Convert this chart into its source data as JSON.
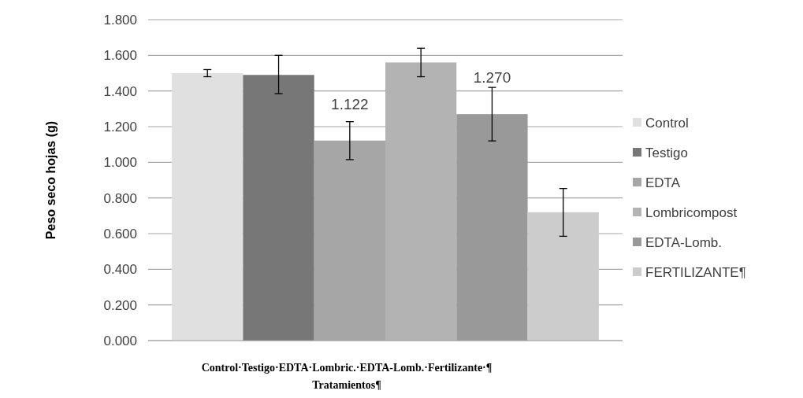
{
  "chart_data": {
    "type": "bar",
    "ylabel": "Peso seco hojas (g)",
    "xlabel": "Tratamientos¶",
    "annotations": [
      "Control·Testigo·EDTA·Lombric.·EDTA-Lomb.·Fertilizante·¶"
    ],
    "categories": [
      null
    ],
    "series": [
      {
        "name": "Control",
        "color": "#e0e0e0",
        "values": [
          1.5
        ],
        "errors": [
          [
            1.48,
            1.52
          ]
        ]
      },
      {
        "name": "Testigo",
        "color": "#777777",
        "values": [
          1.49
        ],
        "errors": [
          [
            1.385,
            1.6
          ]
        ]
      },
      {
        "name": "EDTA",
        "color": "#a6a6a6",
        "values": [
          1.122
        ],
        "errors": [
          [
            1.015,
            1.228
          ]
        ],
        "value_labels": [
          "1.122"
        ]
      },
      {
        "name": "Lombricompost",
        "color": "#b3b3b3",
        "values": [
          1.56
        ],
        "errors": [
          [
            1.48,
            1.64
          ]
        ]
      },
      {
        "name": "EDTA-Lomb.",
        "color": "#999999",
        "values": [
          1.27
        ],
        "errors": [
          [
            1.12,
            1.42
          ]
        ],
        "value_labels": [
          "1.270"
        ]
      },
      {
        "name": "FERTILIZANTE¶",
        "color": "#cccccc",
        "values": [
          0.72
        ],
        "errors": [
          [
            0.585,
            0.853
          ]
        ]
      }
    ],
    "ylim": [
      0,
      1.8
    ],
    "yticks": [
      {
        "value": 0,
        "label": "0.000"
      },
      {
        "value": 0.2,
        "label": "0.200"
      },
      {
        "value": 0.4,
        "label": "0.400"
      },
      {
        "value": 0.6,
        "label": "0.600"
      },
      {
        "value": 0.8,
        "label": "0.800"
      },
      {
        "value": 1.0,
        "label": "1.000"
      },
      {
        "value": 1.2,
        "label": "1.200"
      },
      {
        "value": 1.4,
        "label": "1.400"
      },
      {
        "value": 1.6,
        "label": "1.600"
      },
      {
        "value": 1.8,
        "label": "1.800"
      }
    ],
    "grid": "y",
    "legend": "right"
  }
}
